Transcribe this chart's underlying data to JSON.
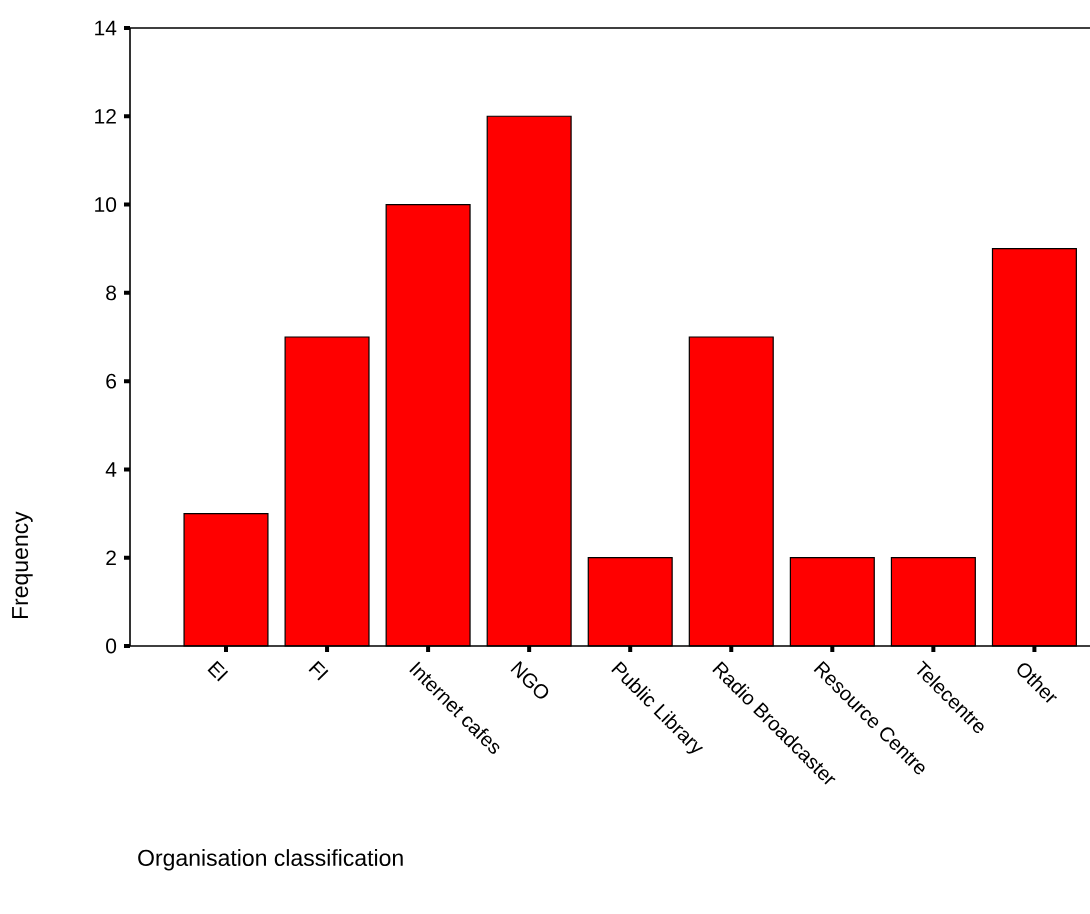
{
  "chart_data": {
    "type": "bar",
    "xlabel": "Organisation classification",
    "ylabel": "Frequency",
    "categories": [
      "EI",
      "FI",
      "Internet cafes",
      "NGO",
      "Public Library",
      "Radio Broadcaster",
      "Resource Centre",
      "Telecentre",
      "Other"
    ],
    "values": [
      3,
      7,
      10,
      12,
      2,
      7,
      2,
      2,
      9
    ],
    "color": "#ff0000",
    "ylim": [
      0,
      14
    ],
    "yticks": [
      0,
      2,
      4,
      6,
      8,
      10,
      12,
      14
    ]
  }
}
